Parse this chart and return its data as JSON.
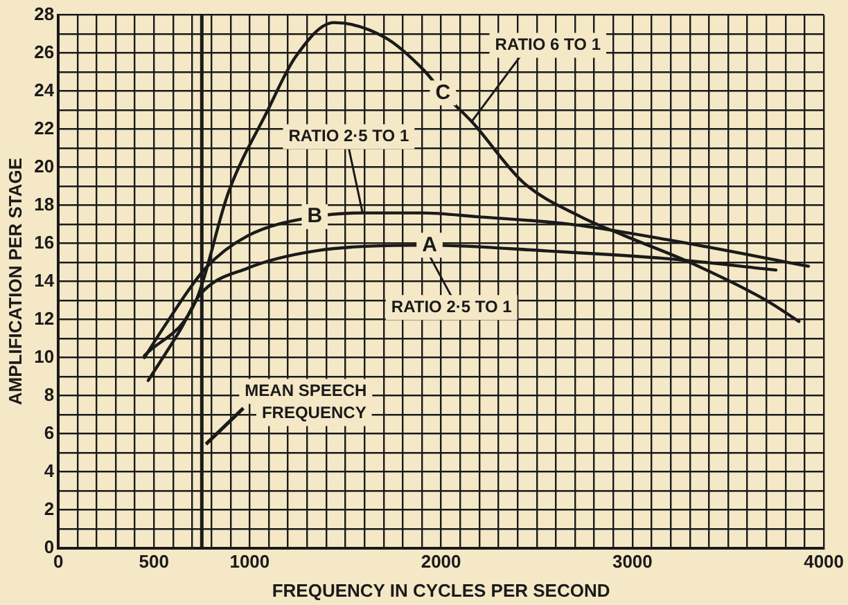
{
  "chart_data": {
    "type": "line",
    "xlabel": "FREQUENCY IN CYCLES PER SECOND",
    "ylabel": "AMPLIFICATION PER STAGE",
    "xlim": [
      0,
      4000
    ],
    "xticks": [
      0,
      {
        "value": 100,
        "label": null
      },
      {
        "value": 200,
        "label": null
      },
      {
        "value": 300,
        "label": null
      },
      {
        "value": 400,
        "label": null
      },
      500,
      {
        "value": 600,
        "label": null
      },
      {
        "value": 700,
        "label": null
      },
      {
        "value": 800,
        "label": null
      },
      {
        "value": 900,
        "label": null
      },
      1000,
      {
        "value": 1100,
        "label": null
      },
      {
        "value": 1200,
        "label": null
      },
      {
        "value": 1300,
        "label": null
      },
      {
        "value": 1400,
        "label": null
      },
      {
        "value": 1500,
        "label": null
      },
      {
        "value": 1600,
        "label": null
      },
      {
        "value": 1700,
        "label": null
      },
      {
        "value": 1800,
        "label": null
      },
      {
        "value": 1900,
        "label": null
      },
      2000,
      {
        "value": 2100,
        "label": null
      },
      {
        "value": 2200,
        "label": null
      },
      {
        "value": 2300,
        "label": null
      },
      {
        "value": 2400,
        "label": null
      },
      {
        "value": 2500,
        "label": null
      },
      {
        "value": 2600,
        "label": null
      },
      {
        "value": 2700,
        "label": null
      },
      {
        "value": 2800,
        "label": null
      },
      {
        "value": 2900,
        "label": null
      },
      3000,
      {
        "value": 3100,
        "label": null
      },
      {
        "value": 3200,
        "label": null
      },
      {
        "value": 3300,
        "label": null
      },
      {
        "value": 3400,
        "label": null
      },
      {
        "value": 3500,
        "label": null
      },
      {
        "value": 3600,
        "label": null
      },
      {
        "value": 3700,
        "label": null
      },
      {
        "value": 3800,
        "label": null
      },
      {
        "value": 3900,
        "label": null
      },
      4000
    ],
    "ylim": [
      0,
      28
    ],
    "yticks": [
      0,
      {
        "value": 1,
        "label": null
      },
      2,
      {
        "value": 3,
        "label": null
      },
      4,
      {
        "value": 5,
        "label": null
      },
      6,
      {
        "value": 7,
        "label": null
      },
      8,
      {
        "value": 9,
        "label": null
      },
      10,
      {
        "value": 11,
        "label": null
      },
      12,
      {
        "value": 13,
        "label": null
      },
      14,
      {
        "value": 15,
        "label": null
      },
      16,
      {
        "value": 17,
        "label": null
      },
      18,
      {
        "value": 19,
        "label": null
      },
      20,
      {
        "value": 21,
        "label": null
      },
      22,
      {
        "value": 23,
        "label": null
      },
      24,
      {
        "value": 25,
        "label": null
      },
      26,
      {
        "value": 27,
        "label": null
      },
      28
    ],
    "grid": true,
    "legend": false,
    "marker": "none",
    "line_style": "solid",
    "series": [
      {
        "name": "C",
        "color": "#1a1a1a",
        "x": [
          450,
          720,
          890,
          1090,
          1240,
          1440,
          1710,
          1910,
          2010,
          2160,
          2430,
          2730,
          2960,
          3300,
          3700,
          3870
        ],
        "values": [
          10.1,
          13,
          18.7,
          22.9,
          25.8,
          27.6,
          26.8,
          25.1,
          23.9,
          22.4,
          19.2,
          17.4,
          16.4,
          15,
          13,
          11.9
        ]
      },
      {
        "name": "B",
        "color": "#1a1a1a",
        "x": [
          450,
          545,
          770,
          990,
          1340,
          1590,
          1900,
          2190,
          2680,
          3180,
          3920
        ],
        "values": [
          10,
          11.5,
          14.7,
          16.4,
          17.4,
          17.6,
          17.6,
          17.4,
          17,
          16.2,
          14.8
        ]
      },
      {
        "name": "A",
        "color": "#1a1a1a",
        "x": [
          470,
          640,
          740,
          990,
          1340,
          1840,
          1940,
          2560,
          3180,
          3750
        ],
        "values": [
          8.8,
          11.5,
          13.3,
          14.7,
          15.6,
          15.9,
          15.9,
          15.6,
          15.2,
          14.6
        ]
      }
    ],
    "ref_lines": [
      {
        "axis": "x",
        "value": 750,
        "label": "MEAN SPEECH FREQUENCY",
        "color": "#1a1a1a"
      }
    ],
    "annotations": [
      {
        "text": "RATIO 6 TO 1",
        "x": 2160,
        "y": 22.4
      },
      {
        "text": "RATIO 2·5 TO 1",
        "x": 1590,
        "y": 17.6
      },
      {
        "text": "RATIO 2·5 TO 1",
        "x": 1910,
        "y": 15.9
      }
    ]
  }
}
